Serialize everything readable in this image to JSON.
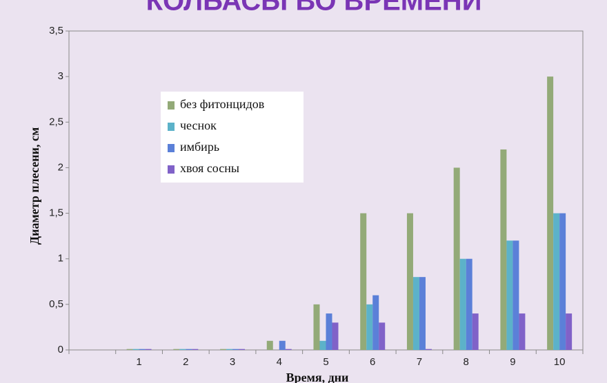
{
  "chart_data": {
    "type": "bar",
    "title": "КОЛБАСЫ ВО ВРЕМЕНИ",
    "x_label": "Время, дни",
    "y_label": "Диаметр  плесени, см",
    "categories": [
      null,
      "1",
      "2",
      "3",
      "4",
      "5",
      "6",
      "7",
      "8",
      "9",
      "10"
    ],
    "series": [
      {
        "name": "без фитонцидов",
        "color": "#93aa78",
        "values": [
          0,
          0.01,
          0.01,
          0.01,
          0.1,
          0.5,
          1.5,
          1.5,
          2,
          2.2,
          3
        ]
      },
      {
        "name": "чеснок",
        "color": "#5cb2c9",
        "values": [
          0,
          0.01,
          0.01,
          0.01,
          0,
          0.1,
          0.5,
          0.8,
          1,
          1.2,
          1.5
        ]
      },
      {
        "name": "имбирь",
        "color": "#5b80d8",
        "values": [
          0,
          0.01,
          0.01,
          0.01,
          0.1,
          0.4,
          0.6,
          0.8,
          1,
          1.2,
          1.5
        ]
      },
      {
        "name": "хвоя сосны",
        "color": "#8062c8",
        "values": [
          0,
          0.01,
          0.01,
          0.01,
          0.01,
          0.3,
          0.3,
          0.01,
          0.4,
          0.4,
          0.4
        ]
      }
    ],
    "ylim": [
      0,
      3.5
    ],
    "yticks": [
      0,
      {
        "value": 0.5,
        "label": "0,5"
      },
      1,
      {
        "value": 1.5,
        "label": "1,5"
      },
      2,
      {
        "value": 2.5,
        "label": "2,5"
      },
      3,
      {
        "value": 3.5,
        "label": "3,5"
      }
    ],
    "legend": "upper left"
  }
}
